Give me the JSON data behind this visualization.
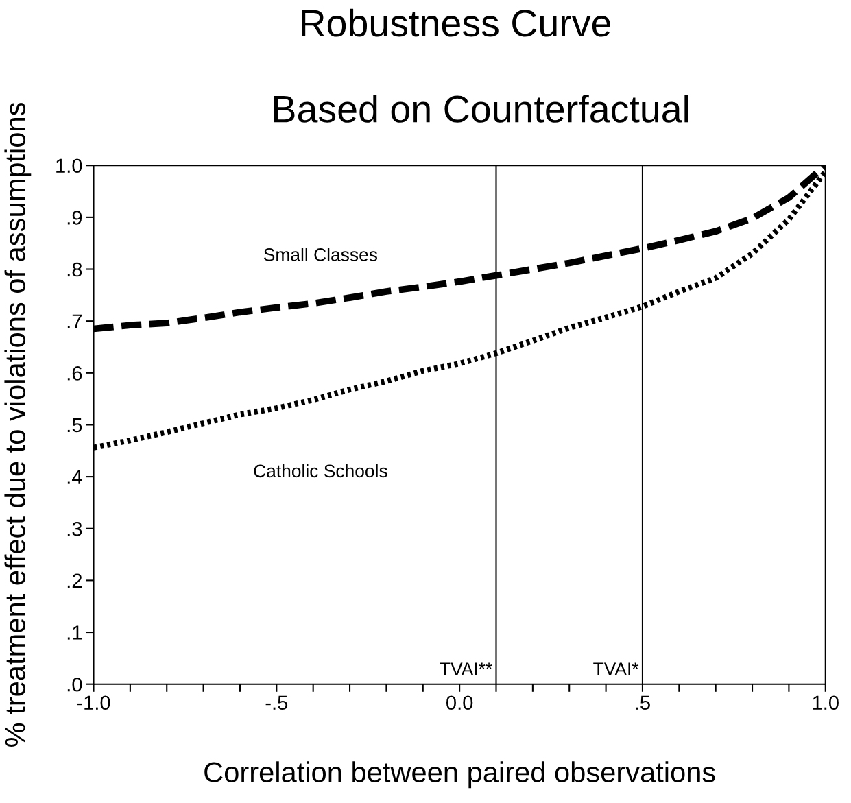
{
  "chart_data": {
    "type": "line",
    "title": "Robustness Curve",
    "subtitle": "Based on Counterfactual",
    "xlabel": "Correlation between paired observations",
    "ylabel": "% treatment effect due to violations of assumptions",
    "x": [
      -1.0,
      -0.9,
      -0.8,
      -0.7,
      -0.6,
      -0.5,
      -0.4,
      -0.3,
      -0.2,
      -0.1,
      0.0,
      0.1,
      0.2,
      0.3,
      0.4,
      0.5,
      0.6,
      0.7,
      0.8,
      0.9,
      1.0
    ],
    "series": [
      {
        "name": "Small Classes",
        "color": "#000000",
        "line_style": "dashed",
        "values": [
          0.685,
          0.692,
          0.696,
          0.706,
          0.717,
          0.726,
          0.734,
          0.745,
          0.757,
          0.766,
          0.776,
          0.788,
          0.8,
          0.812,
          0.826,
          0.84,
          0.856,
          0.873,
          0.898,
          0.938,
          1.0
        ]
      },
      {
        "name": "Catholic Schools",
        "color": "#000000",
        "line_style": "dotted",
        "values": [
          0.456,
          0.47,
          0.486,
          0.503,
          0.52,
          0.532,
          0.548,
          0.568,
          0.584,
          0.604,
          0.618,
          0.638,
          0.662,
          0.687,
          0.707,
          0.728,
          0.757,
          0.783,
          0.83,
          0.896,
          0.988
        ]
      }
    ],
    "xlim": [
      -1.0,
      1.0
    ],
    "ylim": [
      0.0,
      1.0
    ],
    "xticks": [
      {
        "value": -1.0,
        "label": "-1.0"
      },
      {
        "value": -0.9,
        "label": null
      },
      {
        "value": -0.8,
        "label": null
      },
      {
        "value": -0.7,
        "label": null
      },
      {
        "value": -0.6,
        "label": null
      },
      {
        "value": -0.5,
        "label": "-.5"
      },
      {
        "value": -0.4,
        "label": null
      },
      {
        "value": -0.3,
        "label": null
      },
      {
        "value": -0.2,
        "label": null
      },
      {
        "value": -0.1,
        "label": null
      },
      {
        "value": 0.0,
        "label": "0.0"
      },
      {
        "value": 0.1,
        "label": null
      },
      {
        "value": 0.2,
        "label": null
      },
      {
        "value": 0.3,
        "label": null
      },
      {
        "value": 0.4,
        "label": null
      },
      {
        "value": 0.5,
        "label": ".5"
      },
      {
        "value": 0.6,
        "label": null
      },
      {
        "value": 0.7,
        "label": null
      },
      {
        "value": 0.8,
        "label": null
      },
      {
        "value": 0.9,
        "label": null
      },
      {
        "value": 1.0,
        "label": "1.0"
      }
    ],
    "yticks": [
      {
        "value": 0.0,
        "label": ".0"
      },
      {
        "value": 0.1,
        "label": ".1"
      },
      {
        "value": 0.2,
        "label": ".2"
      },
      {
        "value": 0.3,
        "label": ".3"
      },
      {
        "value": 0.4,
        "label": ".4"
      },
      {
        "value": 0.5,
        "label": ".5"
      },
      {
        "value": 0.6,
        "label": ".6"
      },
      {
        "value": 0.7,
        "label": ".7"
      },
      {
        "value": 0.8,
        "label": ".8"
      },
      {
        "value": 0.9,
        "label": ".9"
      },
      {
        "value": 1.0,
        "label": "1.0"
      }
    ],
    "ref_lines": [
      {
        "axis": "x",
        "value": 0.1,
        "label": "TVAI**",
        "color": "#000000"
      },
      {
        "axis": "x",
        "value": 0.5,
        "label": "TVAI*",
        "color": "#000000"
      }
    ],
    "grid": false,
    "legend": false,
    "marker": "none"
  }
}
